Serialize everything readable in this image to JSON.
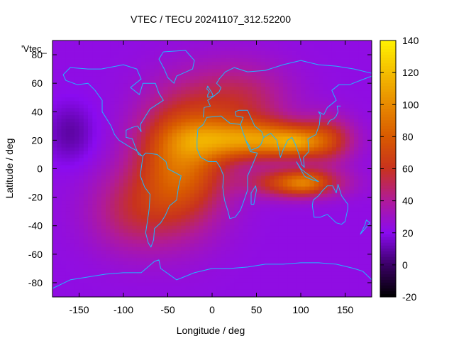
{
  "chart_data": {
    "type": "heatmap",
    "title": "VTEC / TECU 20241107_312.52200",
    "xlabel": "Longitude / deg",
    "ylabel": "Latitude / deg",
    "legend_key": "'Vtec_",
    "xlim": [
      -180,
      180
    ],
    "ylim": [
      -90,
      90
    ],
    "xticks": [
      -150,
      -100,
      -50,
      0,
      50,
      100,
      150
    ],
    "yticks": [
      -80,
      -60,
      -40,
      -20,
      0,
      20,
      40,
      60,
      80
    ],
    "colorbar": {
      "range": [
        -20,
        140
      ],
      "ticks": [
        -20,
        0,
        20,
        40,
        60,
        80,
        100,
        120,
        140
      ],
      "stops": [
        {
          "v": -20,
          "color": "#000000"
        },
        {
          "v": 0,
          "color": "#3a0066"
        },
        {
          "v": 20,
          "color": "#8a0bf0"
        },
        {
          "v": 40,
          "color": "#b01a9a"
        },
        {
          "v": 60,
          "color": "#c8321e"
        },
        {
          "v": 80,
          "color": "#d85a00"
        },
        {
          "v": 100,
          "color": "#e88a00"
        },
        {
          "v": 120,
          "color": "#f4bd00"
        },
        {
          "v": 140,
          "color": "#fff200"
        }
      ]
    },
    "grid": {
      "lon_step": 5,
      "lat_step": 2.5,
      "background_value": 23,
      "features": [
        {
          "name": "eia-north-africa-asia",
          "lon": 60,
          "lat": 20,
          "sx": 45,
          "sy": 9,
          "amp": 70
        },
        {
          "name": "eia-south-indian-ocean",
          "lon": 95,
          "lat": -10,
          "sx": 35,
          "sy": 7,
          "amp": 55
        },
        {
          "name": "peak-india",
          "lon": 95,
          "lat": 18,
          "sx": 18,
          "sy": 6,
          "amp": 30
        },
        {
          "name": "peak-indonesia",
          "lon": 105,
          "lat": -10,
          "sx": 15,
          "sy": 5,
          "amp": 20
        },
        {
          "name": "american-atlantic-blob",
          "lon": -35,
          "lat": 5,
          "sx": 35,
          "sy": 30,
          "amp": 65
        },
        {
          "name": "equatorial-atlantic-core",
          "lon": -10,
          "lat": 20,
          "sx": 30,
          "sy": 10,
          "amp": 20
        },
        {
          "name": "eurasia-extension",
          "lon": 30,
          "lat": 45,
          "sx": 40,
          "sy": 20,
          "amp": 30
        },
        {
          "name": "east-asia-band",
          "lon": 130,
          "lat": 20,
          "sx": 20,
          "sy": 12,
          "amp": 30
        },
        {
          "name": "south-pacific-west",
          "lon": -90,
          "lat": -30,
          "sx": 35,
          "sy": 20,
          "amp": 25
        },
        {
          "name": "north-pacific-trough",
          "lon": -160,
          "lat": 25,
          "sx": 20,
          "sy": 15,
          "amp": -14
        }
      ]
    }
  }
}
